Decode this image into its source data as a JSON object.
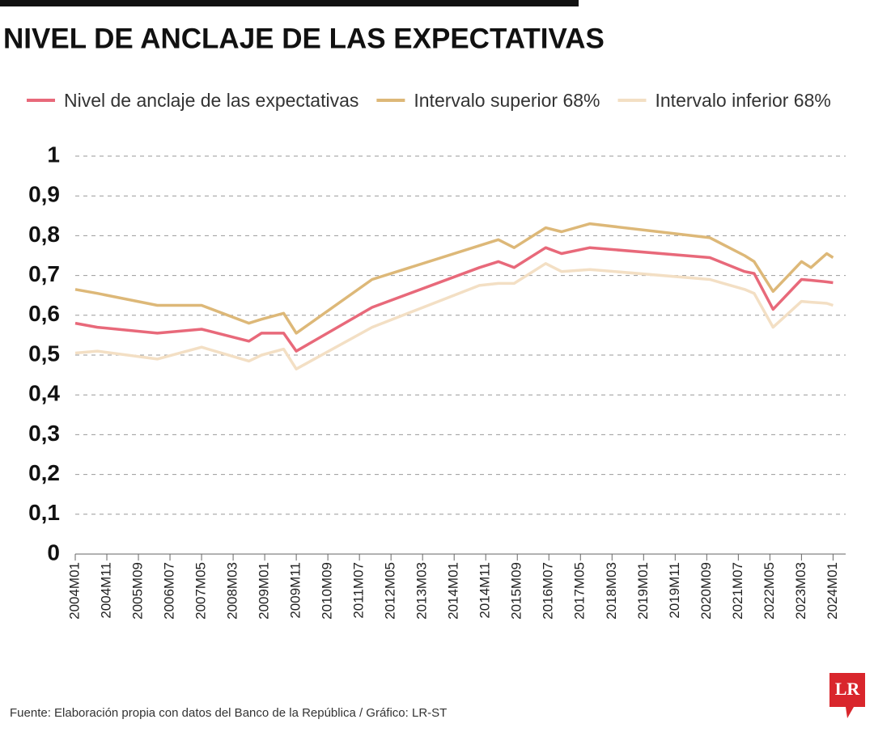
{
  "chart_data": {
    "type": "line",
    "title": "NIVEL DE ANCLAJE DE LAS EXPECTATIVAS",
    "source": "Fuente: Elaboración propia con datos del Banco de la República / Gráfico: LR-ST",
    "logo": "LR",
    "x": [
      "2004M01",
      "2004M08",
      "2006M03",
      "2007M05",
      "2008M08",
      "2008M12",
      "2009M07",
      "2009M11",
      "2011M11",
      "2014M09",
      "2015M03",
      "2015M08",
      "2016M06",
      "2016M11",
      "2017M08",
      "2020M10",
      "2021M09",
      "2021M12",
      "2022M06",
      "2023M03",
      "2023M06",
      "2023M11",
      "2024M01"
    ],
    "series": [
      {
        "name": "Nivel de anclaje de las expectativas",
        "color": "#e8697a",
        "values": [
          0.58,
          0.57,
          0.555,
          0.565,
          0.535,
          0.555,
          0.555,
          0.51,
          0.62,
          0.72,
          0.735,
          0.72,
          0.77,
          0.755,
          0.77,
          0.745,
          0.71,
          0.705,
          0.615,
          0.69,
          0.688,
          0.684,
          0.682
        ]
      },
      {
        "name": "Intervalo superior 68%",
        "color": "#ddb878",
        "values": [
          0.665,
          0.655,
          0.625,
          0.625,
          0.58,
          0.59,
          0.605,
          0.555,
          0.69,
          0.775,
          0.79,
          0.77,
          0.82,
          0.81,
          0.83,
          0.795,
          0.75,
          0.735,
          0.66,
          0.735,
          0.72,
          0.755,
          0.745
        ]
      },
      {
        "name": "Intervalo inferior 68%",
        "color": "#f3dfc4",
        "values": [
          0.505,
          0.51,
          0.49,
          0.52,
          0.485,
          0.5,
          0.515,
          0.465,
          0.57,
          0.675,
          0.68,
          0.68,
          0.73,
          0.71,
          0.715,
          0.69,
          0.665,
          0.655,
          0.57,
          0.635,
          0.633,
          0.63,
          0.625
        ]
      }
    ],
    "xlim": [
      "2004M01",
      "2024M05"
    ],
    "xticks": [
      "2004M01",
      "2004M11",
      "2005M09",
      "2006M07",
      "2007M05",
      "2008M03",
      "2009M01",
      "2009M11",
      "2010M09",
      "2011M07",
      "2012M05",
      "2013M03",
      "2014M01",
      "2014M11",
      "2015M09",
      "2016M07",
      "2017M05",
      "2018M03",
      "2019M01",
      "2019M11",
      "2020M09",
      "2021M07",
      "2022M05",
      "2023M03",
      "2024M01"
    ],
    "ylim": [
      0,
      1
    ],
    "yticks": [
      0,
      {
        "value": 0.1,
        "label": "0,1"
      },
      {
        "value": 0.2,
        "label": "0,2"
      },
      {
        "value": 0.3,
        "label": "0,3"
      },
      {
        "value": 0.4,
        "label": "0,4"
      },
      {
        "value": 0.5,
        "label": "0,5"
      },
      {
        "value": 0.6,
        "label": "0,6"
      },
      {
        "value": 0.7,
        "label": "0,7"
      },
      {
        "value": 0.8,
        "label": "0,8"
      },
      {
        "value": 0.9,
        "label": "0,9"
      },
      1
    ],
    "grid": true,
    "legend": "top"
  }
}
